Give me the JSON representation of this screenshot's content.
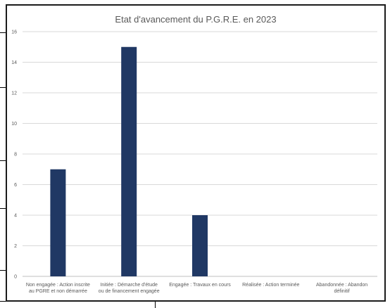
{
  "chart_data": {
    "type": "bar",
    "title": "Etat d'avancement du P.G.R.E. en 2023",
    "categories": [
      [
        "Non engagée : Action inscrite",
        "au PGRE et non démarrée"
      ],
      [
        "Initiée : Démarche d'étude",
        "ou de financement engagée"
      ],
      [
        "Engagée : Travaux en cours"
      ],
      [
        "Réalisée : Action terminée"
      ],
      [
        "Abandonnée : Abandon",
        "définitif"
      ]
    ],
    "values": [
      7,
      15,
      4,
      0,
      0
    ],
    "ylim": [
      0,
      16
    ],
    "yticks": [
      0,
      2,
      4,
      6,
      8,
      10,
      12,
      14,
      16
    ],
    "grid": true,
    "legend": "none",
    "colors": {
      "bar": "#203864",
      "grid": "#d9d9d9",
      "axis": "#bfbfbf",
      "text": "#595959"
    }
  }
}
